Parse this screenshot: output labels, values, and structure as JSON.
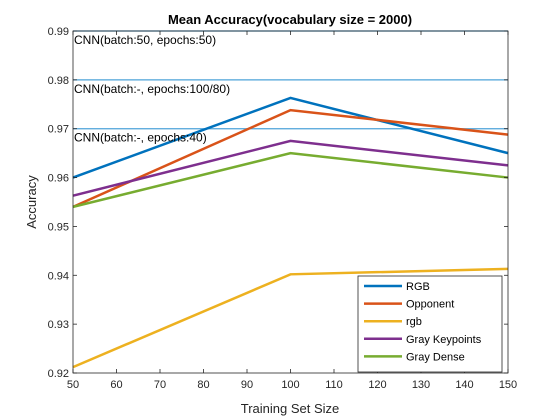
{
  "chart_data": {
    "type": "line",
    "title": "Mean Accuracy(vocabulary size = 2000)",
    "xlabel": "Training Set Size",
    "ylabel": "Accuracy",
    "xlim": [
      50,
      150
    ],
    "ylim": [
      0.92,
      0.99
    ],
    "xticks": [
      50,
      60,
      70,
      80,
      90,
      100,
      110,
      120,
      130,
      140,
      150
    ],
    "yticks": [
      0.92,
      0.93,
      0.94,
      0.95,
      0.96,
      0.97,
      0.98,
      0.99
    ],
    "x": [
      50,
      100,
      150
    ],
    "series": [
      {
        "name": "RGB",
        "color": "#0072BD",
        "values": [
          0.96,
          0.9763,
          0.965
        ]
      },
      {
        "name": "Opponent",
        "color": "#D95319",
        "values": [
          0.954,
          0.9738,
          0.9688
        ]
      },
      {
        "name": "rgb",
        "color": "#EDB120",
        "values": [
          0.9212,
          0.9402,
          0.9413
        ]
      },
      {
        "name": "Gray Keypoints",
        "color": "#7E2F8E",
        "values": [
          0.9563,
          0.9675,
          0.9625
        ]
      },
      {
        "name": "Gray Dense",
        "color": "#77AC30",
        "values": [
          0.954,
          0.965,
          0.96
        ]
      }
    ],
    "reference_lines": [
      {
        "label": "CNN(batch:50, epochs:50)",
        "value": 0.99,
        "color": "#4DA3D9"
      },
      {
        "label": "CNN(batch:-, epochs:100/80)",
        "value": 0.98,
        "color": "#4DA3D9"
      },
      {
        "label": "CNN(batch:-, epochs:40)",
        "value": 0.97,
        "color": "#4DA3D9"
      }
    ],
    "legend_position": "bottom-right",
    "grid": false
  }
}
